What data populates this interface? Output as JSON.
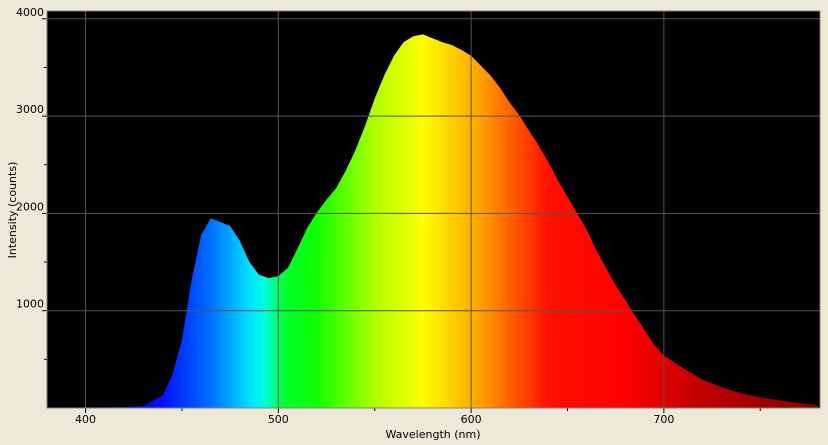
{
  "chart_data": {
    "type": "area",
    "x_label": "Wavelength (nm)",
    "y_label": "Intensity (counts)",
    "x": [
      380,
      400,
      420,
      430,
      440,
      445,
      450,
      455,
      460,
      465,
      470,
      475,
      480,
      485,
      490,
      495,
      500,
      505,
      510,
      515,
      520,
      525,
      530,
      535,
      540,
      545,
      550,
      555,
      560,
      565,
      570,
      575,
      580,
      585,
      590,
      595,
      600,
      605,
      610,
      615,
      620,
      625,
      630,
      635,
      640,
      645,
      650,
      655,
      660,
      665,
      670,
      675,
      680,
      685,
      690,
      695,
      700,
      710,
      720,
      730,
      740,
      750,
      760,
      770,
      780
    ],
    "values": [
      0,
      5,
      10,
      20,
      130,
      340,
      700,
      1310,
      1780,
      1950,
      1910,
      1870,
      1720,
      1500,
      1370,
      1335,
      1355,
      1440,
      1640,
      1850,
      2010,
      2140,
      2260,
      2440,
      2650,
      2900,
      3180,
      3420,
      3620,
      3760,
      3820,
      3840,
      3800,
      3760,
      3730,
      3680,
      3620,
      3520,
      3420,
      3290,
      3140,
      3010,
      2850,
      2700,
      2530,
      2340,
      2170,
      2000,
      1830,
      1620,
      1440,
      1260,
      1110,
      950,
      800,
      650,
      540,
      410,
      290,
      215,
      150,
      110,
      80,
      50,
      30
    ],
    "xlim": [
      380,
      781
    ],
    "ylim": [
      0,
      4080
    ],
    "xticks": [
      400,
      500,
      600,
      700
    ],
    "yticks": [
      1000,
      2000,
      3000,
      4000
    ],
    "xminor": [
      450,
      550,
      650,
      750
    ],
    "yminor": [
      500,
      1500,
      2500,
      3500
    ],
    "grid": true,
    "background": "#000000",
    "grid_color": "#555555",
    "fill_gradient": [
      {
        "x": 400,
        "color": "#1400a0"
      },
      {
        "x": 440,
        "color": "#0010ff"
      },
      {
        "x": 465,
        "color": "#0070ff"
      },
      {
        "x": 485,
        "color": "#00e0ff"
      },
      {
        "x": 493,
        "color": "#00ffe0"
      },
      {
        "x": 503,
        "color": "#00ff30"
      },
      {
        "x": 520,
        "color": "#10ff00"
      },
      {
        "x": 550,
        "color": "#b0ff00"
      },
      {
        "x": 575,
        "color": "#ffff00"
      },
      {
        "x": 605,
        "color": "#ffa000"
      },
      {
        "x": 640,
        "color": "#ff1000"
      },
      {
        "x": 680,
        "color": "#ff0000"
      },
      {
        "x": 720,
        "color": "#c00000"
      },
      {
        "x": 780,
        "color": "#800000"
      }
    ]
  }
}
